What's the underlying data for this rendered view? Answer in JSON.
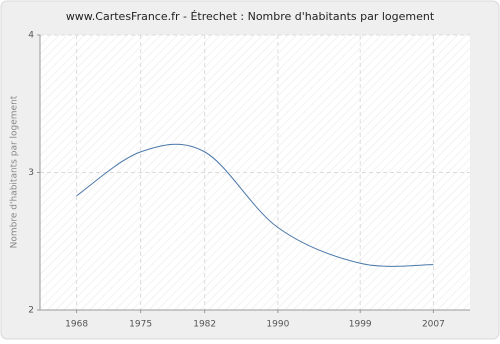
{
  "chart_data": {
    "type": "line",
    "title": "www.CartesFrance.fr - Étrechet : Nombre d'habitants par logement",
    "y_label": "Nombre d'habitants par logement",
    "x": [
      1968,
      1975,
      1982,
      1990,
      1999,
      2007
    ],
    "series": [
      {
        "name": "Nombre d'habitants par logement",
        "color": "#4a78a8",
        "values": [
          2.83,
          3.15,
          3.15,
          2.6,
          2.34,
          2.33
        ]
      }
    ],
    "xlim": [
      1964,
      2011
    ],
    "xticks": [
      1968,
      1975,
      1982,
      1990,
      1999,
      2007
    ],
    "ylim": [
      2,
      4
    ],
    "yticks": [
      2,
      3,
      4
    ],
    "grid": true
  }
}
